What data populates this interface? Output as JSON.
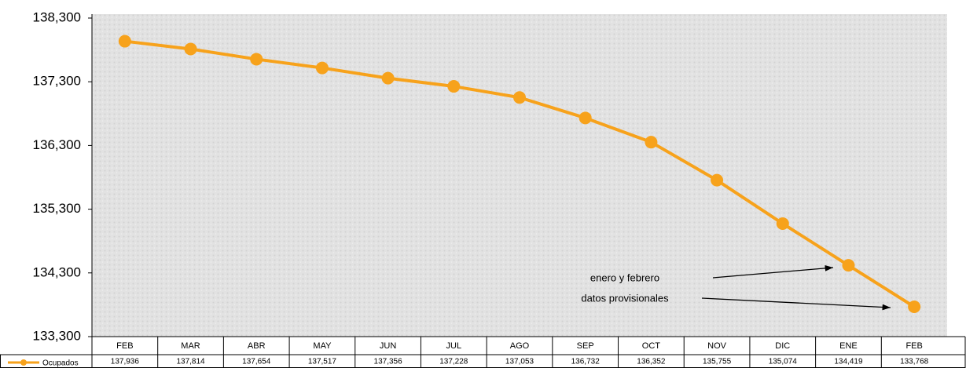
{
  "chart_data": {
    "type": "line",
    "categories": [
      "FEB",
      "MAR",
      "ABR",
      "MAY",
      "JUN",
      "JUL",
      "AGO",
      "SEP",
      "OCT",
      "NOV",
      "DIC",
      "ENE",
      "FEB"
    ],
    "series": [
      {
        "name": "Ocupados",
        "color": "#f7a21b",
        "values": [
          137936,
          137814,
          137654,
          137517,
          137356,
          137228,
          137053,
          136732,
          136352,
          135755,
          135074,
          134419,
          133768
        ],
        "value_labels": [
          "137,936",
          "137,814",
          "137,654",
          "137,517",
          "137,356",
          "137,228",
          "137,053",
          "136,732",
          "136,352",
          "135,755",
          "135,074",
          "134,419",
          "133,768"
        ]
      }
    ],
    "ylim": [
      133300,
      138300
    ],
    "yticks": [
      {
        "value": 133300,
        "label": "133,300"
      },
      {
        "value": 134300,
        "label": "134,300"
      },
      {
        "value": 135300,
        "label": "135,300"
      },
      {
        "value": 136300,
        "label": "136,300"
      },
      {
        "value": 137300,
        "label": "137,300"
      },
      {
        "value": 138300,
        "label": "138,300"
      }
    ],
    "annotations": [
      "enero y febrero",
      "datos provisionales"
    ]
  }
}
